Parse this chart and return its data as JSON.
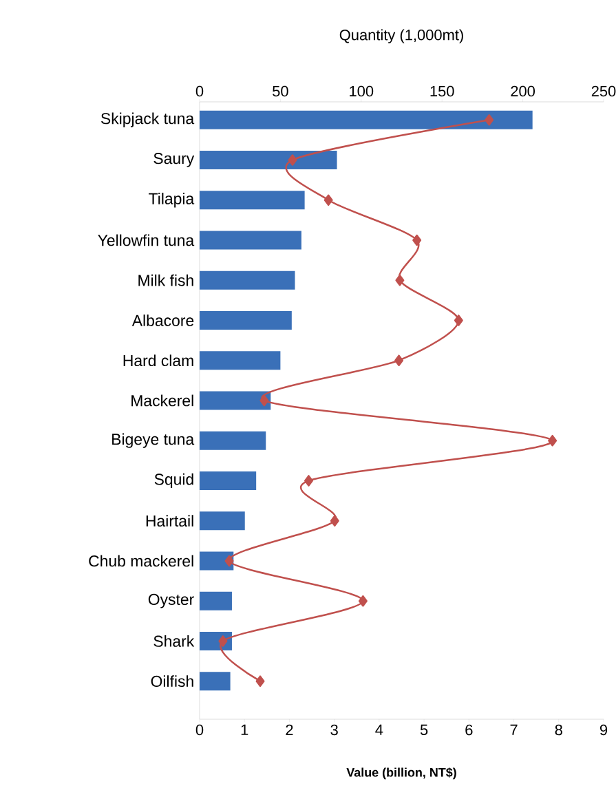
{
  "chart_data": {
    "type": "bar",
    "orientation": "horizontal",
    "xlabel": "Value (billion, NT$)",
    "x2label": "Quantity (1,000mt)",
    "categories": [
      "Skipjack tuna",
      "Saury",
      "Tilapia",
      "Yellowfin tuna",
      "Milk fish",
      "Albacore",
      "Hard clam",
      "Mackerel",
      "Bigeye tuna",
      "Squid",
      "Hairtail",
      "Chub mackerel",
      "Oyster",
      "Shark",
      "Oilfish"
    ],
    "series": [
      {
        "axis": "x2",
        "color": "#3a70b8",
        "values": [
          206,
          85,
          65,
          63,
          59,
          57,
          50,
          44,
          41,
          35,
          28,
          21,
          20,
          20,
          19
        ]
      },
      {
        "type": "line",
        "color": "#c0504d",
        "marker": "diamond",
        "values": [
          6.45,
          2.07,
          2.87,
          4.84,
          4.46,
          5.77,
          4.44,
          1.44,
          7.86,
          2.43,
          3.01,
          0.66,
          3.64,
          0.52,
          1.35
        ]
      }
    ],
    "xlim": [
      0,
      9
    ],
    "xticks": [
      0,
      1,
      2,
      3,
      4,
      5,
      6,
      7,
      8,
      9
    ],
    "x2lim": [
      0,
      250
    ],
    "x2ticks": [
      0,
      50,
      100,
      150,
      200,
      250
    ],
    "grid": false
  }
}
